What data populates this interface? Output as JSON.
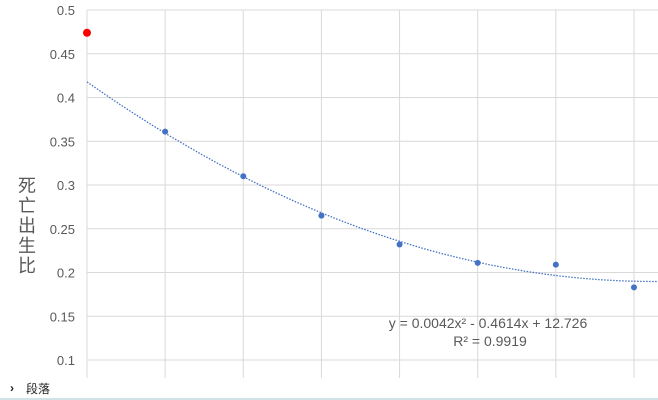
{
  "chart_data": {
    "type": "scatter",
    "ylabel": "死亡出生比",
    "ylim": [
      0.08,
      0.5
    ],
    "yticks": [
      "0.1",
      "0.15",
      "0.2",
      "0.25",
      "0.3",
      "0.35",
      "0.4",
      "0.45",
      "0.5"
    ],
    "grid": true,
    "points": [
      {
        "x": 0,
        "y": 0.474,
        "color": "#ff0000"
      },
      {
        "x": 1,
        "y": 0.361,
        "color": "#4472c4"
      },
      {
        "x": 2,
        "y": 0.31,
        "color": "#4472c4"
      },
      {
        "x": 3,
        "y": 0.265,
        "color": "#4472c4"
      },
      {
        "x": 4,
        "y": 0.232,
        "color": "#4472c4"
      },
      {
        "x": 5,
        "y": 0.211,
        "color": "#4472c4"
      },
      {
        "x": 6,
        "y": 0.209,
        "color": "#4472c4"
      },
      {
        "x": 7,
        "y": 0.183,
        "color": "#4472c4"
      }
    ],
    "trendline": {
      "type": "polynomial-2",
      "style": "dotted",
      "color": "#4472c4",
      "equation": "y = 0.0042x² - 0.4614x + 12.726",
      "r_squared": "R² = 0.9919"
    }
  },
  "bottom_bar": {
    "chevron_icon": "chevron-right-icon",
    "label": "段落"
  }
}
